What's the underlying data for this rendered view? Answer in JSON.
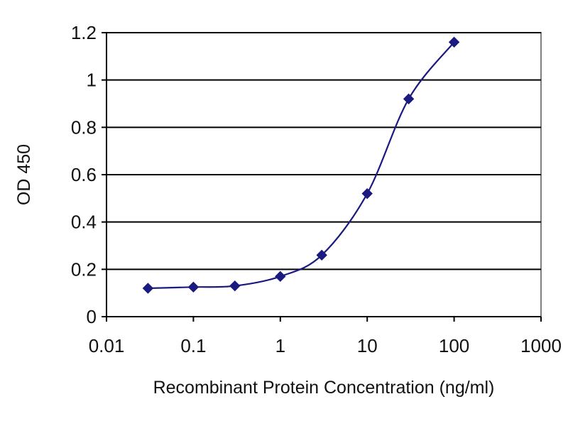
{
  "chart_data": {
    "type": "line",
    "title": "",
    "xlabel": "Recombinant Protein Concentration (ng/ml)",
    "ylabel": "OD 450",
    "x_scale": "log",
    "xlim": [
      0.01,
      1000
    ],
    "ylim": [
      0,
      1.2
    ],
    "x_ticks": [
      0.01,
      0.1,
      1,
      10,
      100,
      1000
    ],
    "x_tick_labels": [
      "0.01",
      "0.1",
      "1",
      "10",
      "100",
      "1000"
    ],
    "y_ticks": [
      0,
      0.2,
      0.4,
      0.6,
      0.8,
      1,
      1.2
    ],
    "y_tick_labels": [
      "0",
      "0.2",
      "0.4",
      "0.6",
      "0.8",
      "1",
      "1.2"
    ],
    "grid": "horizontal",
    "legend": "none",
    "series": [
      {
        "color": "#1a1a80",
        "marker": "diamond",
        "smooth": true,
        "x": [
          0.03,
          0.1,
          0.3,
          1,
          3,
          10,
          30,
          100
        ],
        "y": [
          0.12,
          0.125,
          0.13,
          0.17,
          0.26,
          0.52,
          0.92,
          1.16
        ]
      }
    ]
  }
}
